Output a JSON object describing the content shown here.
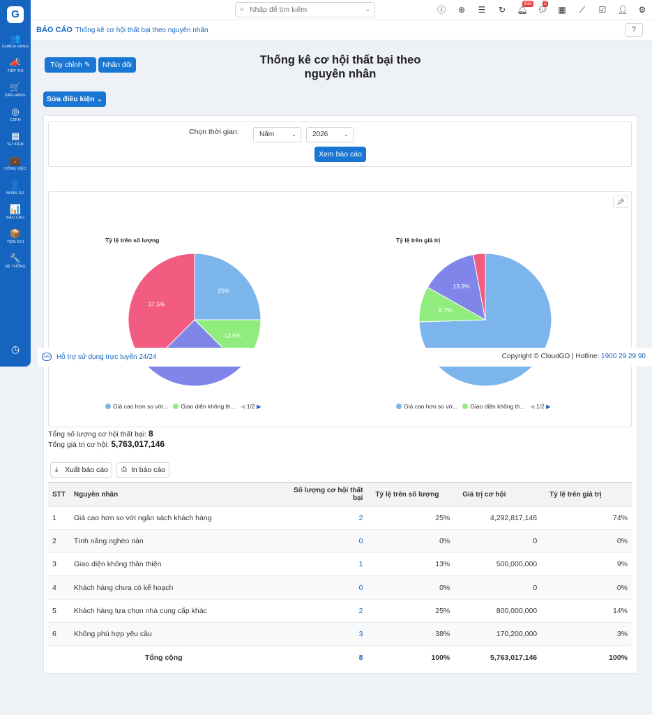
{
  "sidebar": {
    "logo": "G",
    "items": [
      {
        "icon": "users-icon",
        "glyph": "👥",
        "label": "Khách hàng"
      },
      {
        "icon": "megaphone-icon",
        "glyph": "📣",
        "label": "Tiếp thị"
      },
      {
        "icon": "cart-icon",
        "glyph": "🛒",
        "label": "Bán hàng"
      },
      {
        "icon": "lifebuoy-icon",
        "glyph": "◎",
        "label": "CSKH"
      },
      {
        "icon": "calendar-icon",
        "glyph": "▦",
        "label": "Sự kiện"
      },
      {
        "icon": "briefcase-icon",
        "glyph": "💼",
        "label": "Công việc"
      },
      {
        "icon": "person-icon",
        "glyph": "👤",
        "label": "Nhân sự"
      },
      {
        "icon": "report-icon",
        "glyph": "📊",
        "label": "Báo cáo"
      },
      {
        "icon": "box-icon",
        "glyph": "📦",
        "label": "Tiện ích"
      },
      {
        "icon": "wrench-icon",
        "glyph": "🔧",
        "label": "Hệ thống"
      }
    ]
  },
  "search": {
    "placeholder": "Nhập để tìm kiếm"
  },
  "topbar": {
    "notifications_count": "693",
    "messages_count": "2"
  },
  "breadcrumb": {
    "root": "BÁO CÁO",
    "current": "Thống kê cơ hội thất bại theo nguyên nhân"
  },
  "toolbar": {
    "customize_label": "Tùy chỉnh",
    "duplicate_label": "Nhân đôi",
    "edit_condition_label": "Sửa điều kiện"
  },
  "report": {
    "title_line1": "Thống kê cơ hội thất bại theo",
    "title_line2": "nguyên nhân"
  },
  "filter": {
    "label": "Chọn thời gian:",
    "period": "Năm",
    "year": "2026",
    "view_button": "Xem báo cáo"
  },
  "chart_data": [
    {
      "type": "pie",
      "title": "Tỷ lệ trên số lượng",
      "categories": [
        "Giá cao hơn so với ngân sách khách hàng",
        "Tính năng nghèo nàn",
        "Giao diện không thân thiện",
        "Khách hàng chưa có kế hoạch",
        "Khách hàng lựa chọn nhà cung cấp khác",
        "Không phù hợp yêu cầu"
      ],
      "values": [
        2,
        0,
        1,
        0,
        2,
        3
      ],
      "labels": [
        "25%",
        "",
        "12.5%",
        "",
        "25%",
        "37.5%"
      ],
      "colors": [
        "#7cb5ec",
        "#434348",
        "#90ed7d",
        "#f7a35c",
        "#8085e9",
        "#f15c80"
      ],
      "legend": {
        "items": [
          "Giá cao hơn so với...",
          "Giao diện không th..."
        ],
        "page": "1/2"
      }
    },
    {
      "type": "pie",
      "title": "Tỷ lệ trên giá trị",
      "categories": [
        "Giá cao hơn so với ngân sách khách hàng",
        "Tính năng nghèo nàn",
        "Giao diện không thân thiện",
        "Khách hàng chưa có kế hoạch",
        "Khách hàng lựa chọn nhà cung cấp khác",
        "Không phù hợp yêu cầu"
      ],
      "values": [
        4292817146,
        0,
        500000000,
        0,
        800000000,
        170200000
      ],
      "labels": [
        "",
        "",
        "8.7%",
        "",
        "13.9%",
        ""
      ],
      "colors": [
        "#7cb5ec",
        "#434348",
        "#90ed7d",
        "#f7a35c",
        "#8085e9",
        "#f15c80"
      ],
      "legend": {
        "items": [
          "Giá cao hơn so vớ...",
          "Giao diện không th..."
        ],
        "page": "1/2"
      }
    }
  ],
  "summary": {
    "count_label": "Tổng số lượng cơ hội thất bại:",
    "count_value": "8",
    "value_label": "Tổng giá trị cơ hội:",
    "value_value": "5,763,017,146"
  },
  "actions": {
    "export_label": "Xuất báo cáo",
    "print_label": "In báo cáo"
  },
  "table": {
    "headers": [
      "STT",
      "Nguyên nhân",
      "Số lượng cơ hội thất bại",
      "Tỷ lệ trên số lượng",
      "Giá trị cơ hội",
      "Tỷ lệ trên giá trị"
    ],
    "rows": [
      [
        "1",
        "Giá cao hơn so với ngân sách khách hàng",
        "2",
        "25%",
        "4,292,817,146",
        "74%"
      ],
      [
        "2",
        "Tính năng nghèo nàn",
        "0",
        "0%",
        "0",
        "0%"
      ],
      [
        "3",
        "Giao diện không thân thiện",
        "1",
        "13%",
        "500,000,000",
        "9%"
      ],
      [
        "4",
        "Khách hàng chưa có kế hoạch",
        "0",
        "0%",
        "0",
        "0%"
      ],
      [
        "5",
        "Khách hàng lựa chọn nhà cung cấp khác",
        "2",
        "25%",
        "800,000,000",
        "14%"
      ],
      [
        "6",
        "Không phù hợp yêu cầu",
        "3",
        "38%",
        "170,200,000",
        "3%"
      ]
    ],
    "total": {
      "label": "Tổng cộng",
      "count": "8",
      "count_pct": "100%",
      "value": "5,763,017,146",
      "value_pct": "100%"
    }
  },
  "footer": {
    "zalo": "Zalo",
    "support": "Hỗ trợ sử dụng trực tuyến 24/24",
    "copyright": "Copyright © CloudGO | Hotline:",
    "hotline": "1900 29 29 90"
  }
}
